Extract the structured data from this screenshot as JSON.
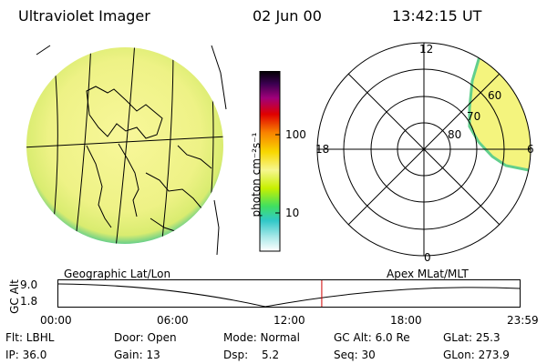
{
  "header": {
    "title": "Ultraviolet Imager",
    "date": "02 Jun 00",
    "time": "13:42:15 UT"
  },
  "colorbar": {
    "unit_label": "photon cm⁻²s⁻¹",
    "ticks": [
      "100",
      "10"
    ]
  },
  "polar": {
    "mlt_labels": [
      "12",
      "18",
      "6",
      "0"
    ],
    "lat_labels": [
      "60",
      "70",
      "80"
    ]
  },
  "timeline": {
    "left_caption": "Geographic Lat/Lon",
    "right_caption": "Apex MLat/MLT",
    "axis_title": "GC Alt",
    "y_ticks": [
      "9.0",
      "1.8"
    ],
    "x_ticks": [
      "00:00",
      "06:00",
      "12:00",
      "18:00",
      "23:59"
    ],
    "marker_time_fraction": 0.571
  },
  "info": {
    "row1": {
      "flt": "Flt: LBHL",
      "door": "Door: Open",
      "mode": "Mode: Normal",
      "gcalt": "GC Alt: 6.0 Re",
      "glat": "GLat: 25.3"
    },
    "row2": {
      "ip": "IP: 36.0",
      "gain": "Gain: 13",
      "dsp_label": "Dsp:",
      "dsp_value": "5.2",
      "seq": "Seq: 30",
      "glon": "GLon: 273.9"
    }
  },
  "colors": {
    "red_marker": "#d00000",
    "disk_fill": "#f4f68e",
    "disk_edge": "#56c88a"
  }
}
